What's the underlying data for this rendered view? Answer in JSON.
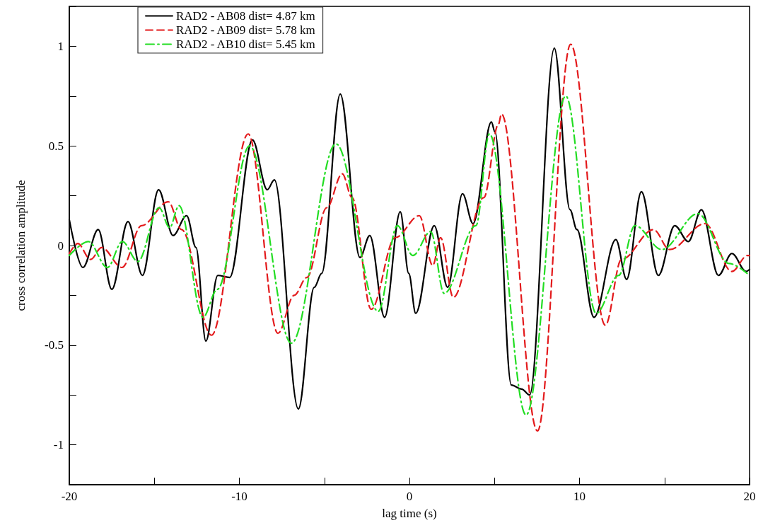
{
  "chart_data": {
    "type": "line",
    "xlabel": "lag time (s)",
    "ylabel": "cross correlation amplitude",
    "xlim": [
      -20,
      20
    ],
    "ylim": [
      -1.2,
      1.2
    ],
    "xticks": [
      -20,
      {
        "value": -15,
        "label": null
      },
      -10,
      {
        "value": -5,
        "label": null
      },
      0,
      {
        "value": 5,
        "label": null
      },
      10,
      {
        "value": 15,
        "label": null
      },
      20
    ],
    "yticks": [
      {
        "value": -1.2,
        "label": null
      },
      -1,
      {
        "value": -0.75,
        "label": null
      },
      -0.5,
      {
        "value": -0.25,
        "label": null
      },
      0,
      {
        "value": 0.25,
        "label": null
      },
      0.5,
      {
        "value": 0.75,
        "label": null
      },
      1,
      {
        "value": 1.2,
        "label": null
      }
    ],
    "grid": false,
    "legend": "top left",
    "marker": "none",
    "series": [
      {
        "name": "RAD2 - AB08 dist= 4.87 km",
        "color": "#000000",
        "line_style": "solid",
        "x": [
          -20,
          -19.2,
          -18.3,
          -17.5,
          -16.55,
          -15.7,
          -14.75,
          -13.9,
          -13.1,
          -12.55,
          -11.97,
          -11.27,
          -10.57,
          -9.23,
          -8.36,
          -7.94,
          -6.53,
          -5.6,
          -5.16,
          -4.07,
          -2.91,
          -2.33,
          -1.46,
          -0.54,
          -0.04,
          0.37,
          1.46,
          2.25,
          3.12,
          3.74,
          4.82,
          5.03,
          5.99,
          6.6,
          7.07,
          8.52,
          9.44,
          9.85,
          10.85,
          12.14,
          12.77,
          13.64,
          14.64,
          15.6,
          16.4,
          17.17,
          18.17,
          18.96,
          19.8,
          20
        ],
        "values": [
          0.13,
          -0.11,
          0.08,
          -0.22,
          0.12,
          -0.15,
          0.28,
          0.05,
          0.15,
          -0.01,
          -0.48,
          -0.15,
          -0.16,
          0.53,
          0.28,
          0.33,
          -0.82,
          -0.21,
          -0.14,
          0.76,
          -0.06,
          0.05,
          -0.36,
          0.17,
          -0.14,
          -0.34,
          0.1,
          -0.21,
          0.26,
          0.11,
          0.62,
          0.57,
          -0.7,
          -0.72,
          -0.75,
          0.99,
          0.18,
          0.08,
          -0.36,
          0.03,
          -0.17,
          0.27,
          -0.15,
          0.1,
          0.02,
          0.18,
          -0.15,
          -0.04,
          -0.13,
          -0.12
        ]
      },
      {
        "name": "RAD2 - AB09 dist= 5.78 km",
        "color": "#e31a1c",
        "line_style": "dashed",
        "x": [
          -20,
          -19.5,
          -18.75,
          -18.1,
          -16.9,
          -15.75,
          -14.18,
          -13.4,
          -11.64,
          -9.48,
          -7.73,
          -6.78,
          -6.03,
          -4.86,
          -3.95,
          -3.37,
          -2.25,
          -0.83,
          0.58,
          1.37,
          1.83,
          2.58,
          4.37,
          5.24,
          5.41,
          7.53,
          9.48,
          11.52,
          12.47,
          14.35,
          15.3,
          17.38,
          18.96,
          19.88,
          20
        ],
        "values": [
          -0.04,
          0.01,
          -0.07,
          -0.01,
          -0.11,
          0.1,
          0.22,
          0.08,
          -0.45,
          0.56,
          -0.44,
          -0.25,
          -0.16,
          0.19,
          0.36,
          0.24,
          -0.32,
          0.04,
          0.15,
          -0.1,
          0.04,
          -0.26,
          0.24,
          0.61,
          0.66,
          -0.93,
          1.01,
          -0.4,
          -0.07,
          0.08,
          -0.02,
          0.11,
          -0.13,
          -0.05,
          -0.05
        ]
      },
      {
        "name": "RAD2 - AB10 dist= 5.45 km",
        "color": "#22dd22",
        "line_style": "dashdot",
        "x": [
          -20,
          -18.88,
          -17.76,
          -16.88,
          -15.97,
          -14.72,
          -14.1,
          -13.55,
          -12.14,
          -11.3,
          -9.4,
          -6.94,
          -4.32,
          -1.83,
          -0.71,
          0.2,
          1.25,
          2.04,
          3.91,
          4.7,
          6.86,
          9.19,
          10.98,
          12.3,
          13.26,
          14.84,
          16.96,
          18.8,
          20
        ],
        "values": [
          -0.05,
          0.02,
          -0.11,
          0.02,
          -0.08,
          0.19,
          0.09,
          0.2,
          -0.36,
          -0.22,
          0.5,
          -0.49,
          0.51,
          -0.33,
          0.1,
          -0.05,
          0.07,
          -0.24,
          0.1,
          0.56,
          -0.85,
          0.75,
          -0.34,
          -0.15,
          0.1,
          -0.02,
          0.16,
          -0.09,
          -0.15
        ]
      }
    ]
  }
}
